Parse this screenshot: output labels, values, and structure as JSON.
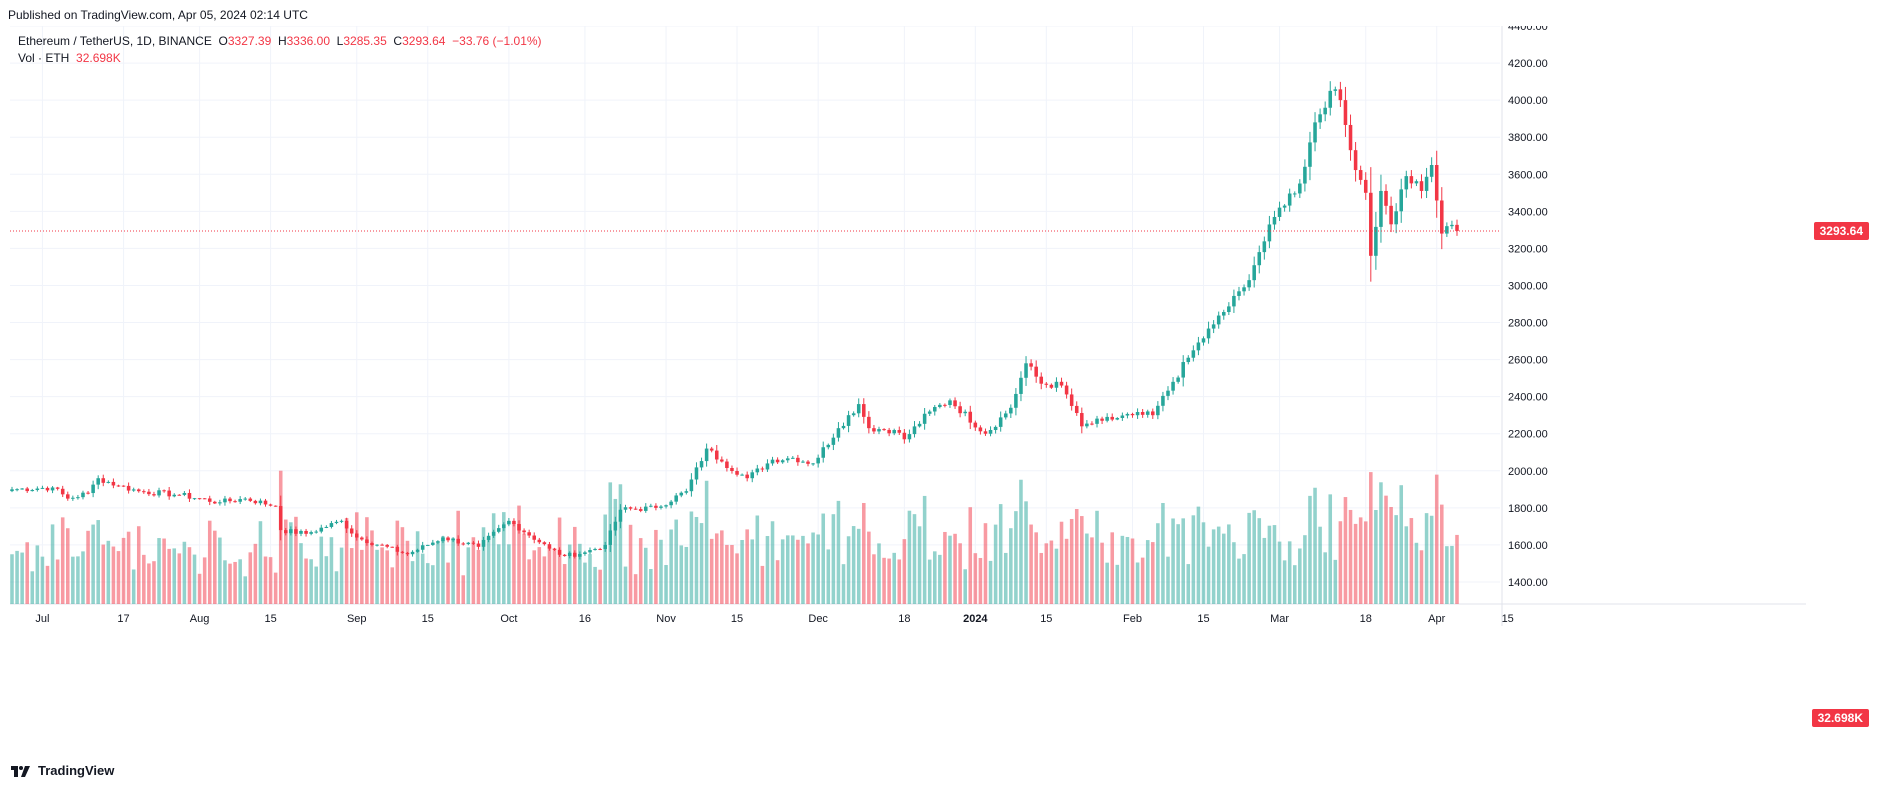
{
  "header": {
    "published": "Published on TradingView.com, Apr 05, 2024 02:14 UTC"
  },
  "legend": {
    "symbol": "Ethereum / TetherUS, 1D, BINANCE",
    "o_label": "O",
    "o_value": "3327.39",
    "h_label": "H",
    "h_value": "3336.00",
    "l_label": "L",
    "l_value": "3285.35",
    "c_label": "C",
    "c_value": "3293.64",
    "change": "−33.76 (−1.01%)",
    "vol_label": "Vol · ETH",
    "vol_value": "32.698K"
  },
  "price_tags": {
    "last_price": "3293.64",
    "last_volume": "32.698K"
  },
  "footer": {
    "brand": "TradingView"
  },
  "colors": {
    "up": "#26a69a",
    "down": "#f23645",
    "grid": "#f0f3fa",
    "axis_text": "#131722"
  },
  "chart_data": {
    "type": "candlestick",
    "symbol": "ETH/USDT",
    "interval": "1D",
    "x_start": "2023-06-25",
    "x_end": "2024-04-05",
    "ylim": [
      1400,
      4400
    ],
    "y_ticks": [
      "1400.00",
      "1600.00",
      "1800.00",
      "2000.00",
      "2200.00",
      "2400.00",
      "2600.00",
      "2800.00",
      "3000.00",
      "3200.00",
      "3400.00",
      "3600.00",
      "3800.00",
      "4000.00",
      "4200.00",
      "4400.00"
    ],
    "x_ticks": [
      {
        "label": "Jul",
        "date": "2023-07-01"
      },
      {
        "label": "17",
        "date": "2023-07-17"
      },
      {
        "label": "Aug",
        "date": "2023-08-01"
      },
      {
        "label": "15",
        "date": "2023-08-15"
      },
      {
        "label": "Sep",
        "date": "2023-09-01"
      },
      {
        "label": "15",
        "date": "2023-09-15"
      },
      {
        "label": "Oct",
        "date": "2023-10-01"
      },
      {
        "label": "16",
        "date": "2023-10-16"
      },
      {
        "label": "Nov",
        "date": "2023-11-01"
      },
      {
        "label": "15",
        "date": "2023-11-15"
      },
      {
        "label": "Dec",
        "date": "2023-12-01"
      },
      {
        "label": "18",
        "date": "2023-12-18"
      },
      {
        "label": "2024",
        "date": "2024-01-01"
      },
      {
        "label": "15",
        "date": "2024-01-15"
      },
      {
        "label": "Feb",
        "date": "2024-02-01"
      },
      {
        "label": "15",
        "date": "2024-02-15"
      },
      {
        "label": "Mar",
        "date": "2024-03-01"
      },
      {
        "label": "18",
        "date": "2024-03-18"
      },
      {
        "label": "Apr",
        "date": "2024-04-01"
      },
      {
        "label": "15",
        "date": "2024-04-15"
      }
    ],
    "close_path": [
      {
        "date": "2023-06-25",
        "close": 1900
      },
      {
        "date": "2023-07-03",
        "close": 1910
      },
      {
        "date": "2023-07-06",
        "close": 1850
      },
      {
        "date": "2023-07-10",
        "close": 1880
      },
      {
        "date": "2023-07-12",
        "close": 1960
      },
      {
        "date": "2023-07-16",
        "close": 1920
      },
      {
        "date": "2023-07-20",
        "close": 1890
      },
      {
        "date": "2023-07-28",
        "close": 1870
      },
      {
        "date": "2023-08-05",
        "close": 1830
      },
      {
        "date": "2023-08-10",
        "close": 1850
      },
      {
        "date": "2023-08-16",
        "close": 1810
      },
      {
        "date": "2023-08-17",
        "close": 1680
      },
      {
        "date": "2023-08-22",
        "close": 1660
      },
      {
        "date": "2023-08-29",
        "close": 1730
      },
      {
        "date": "2023-09-01",
        "close": 1640
      },
      {
        "date": "2023-09-11",
        "close": 1550
      },
      {
        "date": "2023-09-18",
        "close": 1640
      },
      {
        "date": "2023-09-25",
        "close": 1590
      },
      {
        "date": "2023-10-01",
        "close": 1730
      },
      {
        "date": "2023-10-09",
        "close": 1580
      },
      {
        "date": "2023-10-12",
        "close": 1540
      },
      {
        "date": "2023-10-16",
        "close": 1560
      },
      {
        "date": "2023-10-20",
        "close": 1600
      },
      {
        "date": "2023-10-23",
        "close": 1790
      },
      {
        "date": "2023-10-30",
        "close": 1800
      },
      {
        "date": "2023-11-05",
        "close": 1890
      },
      {
        "date": "2023-11-09",
        "close": 2120
      },
      {
        "date": "2023-11-12",
        "close": 2050
      },
      {
        "date": "2023-11-17",
        "close": 1960
      },
      {
        "date": "2023-11-22",
        "close": 2060
      },
      {
        "date": "2023-11-26",
        "close": 2070
      },
      {
        "date": "2023-11-30",
        "close": 2040
      },
      {
        "date": "2023-12-05",
        "close": 2230
      },
      {
        "date": "2023-12-09",
        "close": 2360
      },
      {
        "date": "2023-12-11",
        "close": 2230
      },
      {
        "date": "2023-12-16",
        "close": 2220
      },
      {
        "date": "2023-12-18",
        "close": 2170
      },
      {
        "date": "2023-12-23",
        "close": 2320
      },
      {
        "date": "2023-12-27",
        "close": 2380
      },
      {
        "date": "2024-01-03",
        "close": 2200
      },
      {
        "date": "2024-01-08",
        "close": 2340
      },
      {
        "date": "2024-01-11",
        "close": 2580
      },
      {
        "date": "2024-01-14",
        "close": 2470
      },
      {
        "date": "2024-01-18",
        "close": 2460
      },
      {
        "date": "2024-01-22",
        "close": 2240
      },
      {
        "date": "2024-01-26",
        "close": 2270
      },
      {
        "date": "2024-02-01",
        "close": 2300
      },
      {
        "date": "2024-02-05",
        "close": 2300
      },
      {
        "date": "2024-02-09",
        "close": 2480
      },
      {
        "date": "2024-02-13",
        "close": 2650
      },
      {
        "date": "2024-02-17",
        "close": 2790
      },
      {
        "date": "2024-02-23",
        "close": 2990
      },
      {
        "date": "2024-02-26",
        "close": 3180
      },
      {
        "date": "2024-03-01",
        "close": 3420
      },
      {
        "date": "2024-03-05",
        "close": 3550
      },
      {
        "date": "2024-03-08",
        "close": 3880
      },
      {
        "date": "2024-03-11",
        "close": 4050
      },
      {
        "date": "2024-03-13",
        "close": 4000
      },
      {
        "date": "2024-03-15",
        "close": 3730
      },
      {
        "date": "2024-03-18",
        "close": 3500
      },
      {
        "date": "2024-03-19",
        "close": 3160
      },
      {
        "date": "2024-03-21",
        "close": 3510
      },
      {
        "date": "2024-03-23",
        "close": 3330
      },
      {
        "date": "2024-03-26",
        "close": 3590
      },
      {
        "date": "2024-03-29",
        "close": 3510
      },
      {
        "date": "2024-03-31",
        "close": 3650
      },
      {
        "date": "2024-04-02",
        "close": 3280
      },
      {
        "date": "2024-04-03",
        "close": 3320
      },
      {
        "date": "2024-04-04",
        "close": 3327
      },
      {
        "date": "2024-04-05",
        "close": 3294
      }
    ],
    "volume_max": "2050K"
  }
}
